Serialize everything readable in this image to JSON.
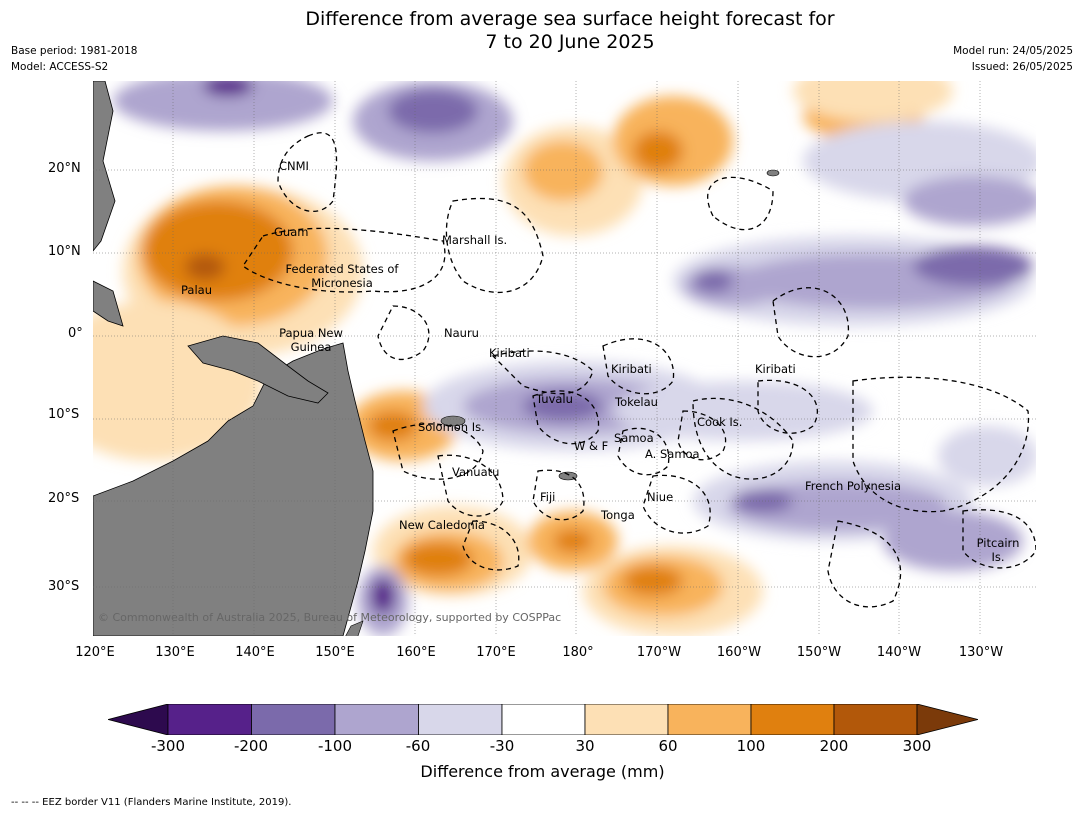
{
  "title": {
    "line1": "Difference from average sea surface height forecast for",
    "line2": "7 to 20 June 2025"
  },
  "meta": {
    "base_period": "Base period: 1981-2018",
    "model": "Model: ACCESS-S2",
    "model_run": "Model run: 24/05/2025",
    "issued": "Issued: 26/05/2025"
  },
  "map": {
    "copyright": "© Commonwealth of Australia 2025, Bureau of Meteorology, supported by COSPPac",
    "latitude_labels": [
      "20°N",
      "10°N",
      "0°",
      "10°S",
      "20°S",
      "30°S"
    ],
    "longitude_labels": [
      "120°E",
      "130°E",
      "140°E",
      "150°E",
      "160°E",
      "170°E",
      "180°",
      "170°W",
      "160°W",
      "150°W",
      "140°W",
      "130°W"
    ],
    "places": [
      "CNMI",
      "Guam",
      "Marshall Is.",
      "Federated States of Micronesia",
      "Palau",
      "Papua New Guinea",
      "Nauru",
      "Kiribati",
      "Kiribati",
      "Kiribati",
      "Tuvalu",
      "Tokelau",
      "Cook Is.",
      "Solomon Is.",
      "W & F",
      "Samoa",
      "A. Samoa",
      "Vanuatu",
      "Fiji",
      "Niue",
      "French Polynesia",
      "Tonga",
      "New Caledonia",
      "Pitcairn Is."
    ],
    "colors": {
      "land": "#808080",
      "minus_300_below": "#2d0a4e",
      "minus_300_200": "#56218a",
      "minus_200_100": "#7b6aab",
      "minus_100_60": "#aea5cf",
      "minus_60_30": "#d8d7ea",
      "neutral": "#ffffff",
      "plus_30_60": "#fde0b5",
      "plus_60_100": "#f8b35c",
      "plus_100_200": "#e0800f",
      "plus_200_300": "#b2580a",
      "plus_300_above": "#7b3a0a"
    }
  },
  "colorbar": {
    "ticks": [
      "-300",
      "-200",
      "-100",
      "-60",
      "-30",
      "30",
      "60",
      "100",
      "200",
      "300"
    ],
    "label": "Difference from average (mm)"
  },
  "footer": "-- -- -- EEZ border V11 (Flanders Marine Institute, 2019)."
}
